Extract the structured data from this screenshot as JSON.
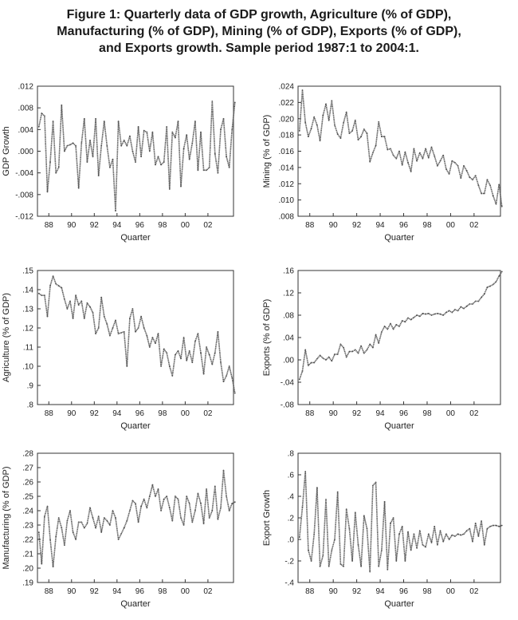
{
  "figure": {
    "title_lines": [
      "Figure 1: Quarterly data of GDP growth, Agriculture (% of GDP),",
      "Manufacturing (% of GDP), Mining (% of GDP), Exports (% of GDP),",
      "and Exports growth. Sample period 1987:1 to 2004:1."
    ]
  },
  "chart_data": [
    {
      "type": "line",
      "ylabel": "GDP Growth",
      "xlabel": "Quarter",
      "xticks": [
        "88",
        "90",
        "92",
        "94",
        "96",
        "98",
        "00",
        "02"
      ],
      "yticks": [
        ".012",
        ".008",
        ".004",
        ".000",
        "-.004",
        "-.008",
        "-.012"
      ],
      "ylim": [
        -0.012,
        0.012
      ],
      "xlim": [
        1987.0,
        2004.25
      ],
      "grid": false,
      "x_start": "1987:1",
      "values": [
        0.0045,
        0.007,
        0.0065,
        -0.0075,
        -0.002,
        0.0055,
        -0.004,
        -0.003,
        0.0085,
        0.0,
        0.001,
        0.0012,
        0.0015,
        0.001,
        -0.0068,
        0.0015,
        0.006,
        -0.002,
        0.002,
        -0.001,
        0.006,
        -0.0045,
        0.001,
        0.0055,
        0.001,
        -0.003,
        -0.0015,
        -0.011,
        0.0055,
        0.001,
        0.002,
        0.001,
        0.0028,
        0.0,
        -0.002,
        0.0045,
        -0.001,
        0.0038,
        0.0035,
        0.0,
        0.0035,
        -0.0025,
        -0.001,
        -0.0025,
        -0.002,
        0.0045,
        -0.007,
        0.0035,
        0.0025,
        0.0055,
        -0.0065,
        0.0005,
        0.003,
        -0.0015,
        0.0015,
        0.0055,
        -0.0035,
        0.0035,
        -0.0035,
        -0.0035,
        -0.003,
        0.0092,
        -0.0005,
        -0.004,
        0.004,
        0.006,
        -0.001,
        -0.003,
        0.004,
        0.009
      ]
    },
    {
      "type": "line",
      "ylabel": "Mining (% of GDP)",
      "xlabel": "Quarter",
      "xticks": [
        "88",
        "90",
        "92",
        "94",
        "96",
        "98",
        "00",
        "02"
      ],
      "yticks": [
        ".024",
        ".022",
        ".020",
        ".018",
        ".016",
        ".014",
        ".012",
        ".010",
        ".008"
      ],
      "ylim": [
        0.008,
        0.024
      ],
      "xlim": [
        1987.0,
        2004.25
      ],
      "grid": false,
      "x_start": "1987:1",
      "values": [
        0.0185,
        0.0235,
        0.0195,
        0.0178,
        0.0188,
        0.0202,
        0.0192,
        0.0173,
        0.0204,
        0.0218,
        0.0198,
        0.0222,
        0.0192,
        0.0181,
        0.0176,
        0.0195,
        0.0208,
        0.0182,
        0.0185,
        0.0198,
        0.0174,
        0.0178,
        0.0187,
        0.0182,
        0.0147,
        0.0158,
        0.0167,
        0.0196,
        0.0178,
        0.0178,
        0.0162,
        0.0163,
        0.0155,
        0.0151,
        0.016,
        0.0143,
        0.0159,
        0.0146,
        0.0135,
        0.0163,
        0.0148,
        0.0158,
        0.0151,
        0.0163,
        0.0152,
        0.0165,
        0.0154,
        0.0142,
        0.0148,
        0.0155,
        0.0138,
        0.0132,
        0.0148,
        0.0146,
        0.0142,
        0.0127,
        0.0142,
        0.0136,
        0.0128,
        0.0125,
        0.013,
        0.0118,
        0.0108,
        0.0108,
        0.0125,
        0.0118,
        0.0105,
        0.0095,
        0.0119,
        0.0092
      ]
    },
    {
      "type": "line",
      "ylabel": "Agriculture (% of GDP)",
      "xlabel": "Quarter",
      "xticks": [
        "88",
        "90",
        "92",
        "94",
        "96",
        "98",
        "00",
        "02"
      ],
      "yticks": [
        ".15",
        ".14",
        ".13",
        ".12",
        ".11",
        ".10",
        ".9",
        ".8"
      ],
      "ylim": [
        0.08,
        0.15
      ],
      "xlim": [
        1987.0,
        2004.25
      ],
      "grid": false,
      "x_start": "1987:1",
      "values": [
        0.138,
        0.137,
        0.137,
        0.126,
        0.142,
        0.147,
        0.143,
        0.142,
        0.141,
        0.135,
        0.13,
        0.134,
        0.125,
        0.137,
        0.132,
        0.134,
        0.125,
        0.133,
        0.131,
        0.128,
        0.117,
        0.12,
        0.136,
        0.126,
        0.122,
        0.116,
        0.12,
        0.124,
        0.117,
        0.1175,
        0.118,
        0.1,
        0.125,
        0.13,
        0.118,
        0.12,
        0.126,
        0.12,
        0.116,
        0.11,
        0.115,
        0.112,
        0.117,
        0.1,
        0.109,
        0.107,
        0.1,
        0.095,
        0.106,
        0.108,
        0.104,
        0.115,
        0.103,
        0.108,
        0.102,
        0.113,
        0.117,
        0.107,
        0.096,
        0.11,
        0.106,
        0.101,
        0.107,
        0.118,
        0.102,
        0.092,
        0.095,
        0.1,
        0.094,
        0.086
      ]
    },
    {
      "type": "line",
      "ylabel": "Exports (% of GDP)",
      "xlabel": "Quarter",
      "xticks": [
        "88",
        "90",
        "92",
        "94",
        "96",
        "98",
        "00",
        "02"
      ],
      "yticks": [
        ".16",
        ".12",
        ".08",
        ".04",
        ".00",
        "-.04",
        "-.08"
      ],
      "ylim": [
        -0.08,
        0.16
      ],
      "xlim": [
        1987.0,
        2004.25
      ],
      "grid": false,
      "x_start": "1987:1",
      "values": [
        -0.035,
        -0.02,
        0.018,
        -0.01,
        -0.005,
        -0.005,
        0.002,
        0.008,
        0.003,
        0.0,
        0.005,
        -0.002,
        0.01,
        0.01,
        0.028,
        0.022,
        0.005,
        0.015,
        0.015,
        0.018,
        0.012,
        0.025,
        0.012,
        0.018,
        0.028,
        0.022,
        0.045,
        0.03,
        0.05,
        0.06,
        0.055,
        0.065,
        0.055,
        0.063,
        0.06,
        0.07,
        0.068,
        0.075,
        0.072,
        0.076,
        0.08,
        0.078,
        0.083,
        0.082,
        0.083,
        0.08,
        0.082,
        0.083,
        0.082,
        0.08,
        0.085,
        0.088,
        0.085,
        0.09,
        0.088,
        0.095,
        0.092,
        0.096,
        0.1,
        0.1,
        0.105,
        0.105,
        0.112,
        0.118,
        0.13,
        0.132,
        0.135,
        0.14,
        0.15,
        0.158
      ]
    },
    {
      "type": "line",
      "ylabel": "Manufacturing (% of GDP)",
      "xlabel": "Quarter",
      "xticks": [
        "88",
        "90",
        "92",
        "94",
        "96",
        "98",
        "00",
        "02"
      ],
      "yticks": [
        ".28",
        ".27",
        ".26",
        ".25",
        ".24",
        ".23",
        ".22",
        ".21",
        ".20",
        ".19"
      ],
      "ylim": [
        0.19,
        0.28
      ],
      "xlim": [
        1987.0,
        2004.25
      ],
      "grid": false,
      "x_start": "1987:1",
      "values": [
        0.225,
        0.203,
        0.236,
        0.243,
        0.22,
        0.201,
        0.222,
        0.235,
        0.228,
        0.216,
        0.233,
        0.24,
        0.225,
        0.22,
        0.232,
        0.232,
        0.228,
        0.231,
        0.242,
        0.235,
        0.228,
        0.236,
        0.225,
        0.235,
        0.233,
        0.23,
        0.24,
        0.235,
        0.22,
        0.224,
        0.228,
        0.233,
        0.24,
        0.247,
        0.245,
        0.232,
        0.243,
        0.248,
        0.242,
        0.25,
        0.258,
        0.25,
        0.255,
        0.24,
        0.248,
        0.25,
        0.242,
        0.233,
        0.25,
        0.248,
        0.235,
        0.23,
        0.25,
        0.245,
        0.232,
        0.24,
        0.252,
        0.245,
        0.231,
        0.255,
        0.235,
        0.24,
        0.257,
        0.234,
        0.242,
        0.268,
        0.25,
        0.24,
        0.245,
        0.246
      ]
    },
    {
      "type": "line",
      "ylabel": "Export Growth",
      "xlabel": "Quarter",
      "xticks": [
        "88",
        "90",
        "92",
        "94",
        "96",
        "98",
        "00",
        "02"
      ],
      "yticks": [
        ".8",
        ".6",
        ".4",
        ".2",
        ".0",
        "-.2",
        "-.4"
      ],
      "ylim": [
        -0.4,
        0.8
      ],
      "xlim": [
        1987.0,
        2004.25
      ],
      "grid": false,
      "x_start": "1987:1",
      "values": [
        0.02,
        0.3,
        0.63,
        -0.1,
        -0.2,
        0.05,
        0.48,
        -0.25,
        -0.15,
        0.37,
        -0.25,
        -0.1,
        0.0,
        0.44,
        -0.23,
        -0.25,
        0.28,
        0.1,
        -0.2,
        0.25,
        -0.05,
        -0.25,
        0.22,
        0.1,
        -0.3,
        0.5,
        0.53,
        -0.25,
        -0.1,
        0.35,
        -0.28,
        0.15,
        0.2,
        -0.2,
        0.05,
        0.12,
        -0.2,
        0.07,
        -0.1,
        0.05,
        -0.08,
        0.08,
        -0.05,
        -0.07,
        0.05,
        -0.03,
        0.12,
        -0.05,
        0.08,
        -0.02,
        0.05,
        0.0,
        0.04,
        0.03,
        0.05,
        0.04,
        0.05,
        0.08,
        0.1,
        -0.02,
        0.15,
        0.03,
        0.17,
        -0.05,
        0.1,
        0.12,
        0.13,
        0.13,
        0.12,
        0.13
      ]
    }
  ]
}
